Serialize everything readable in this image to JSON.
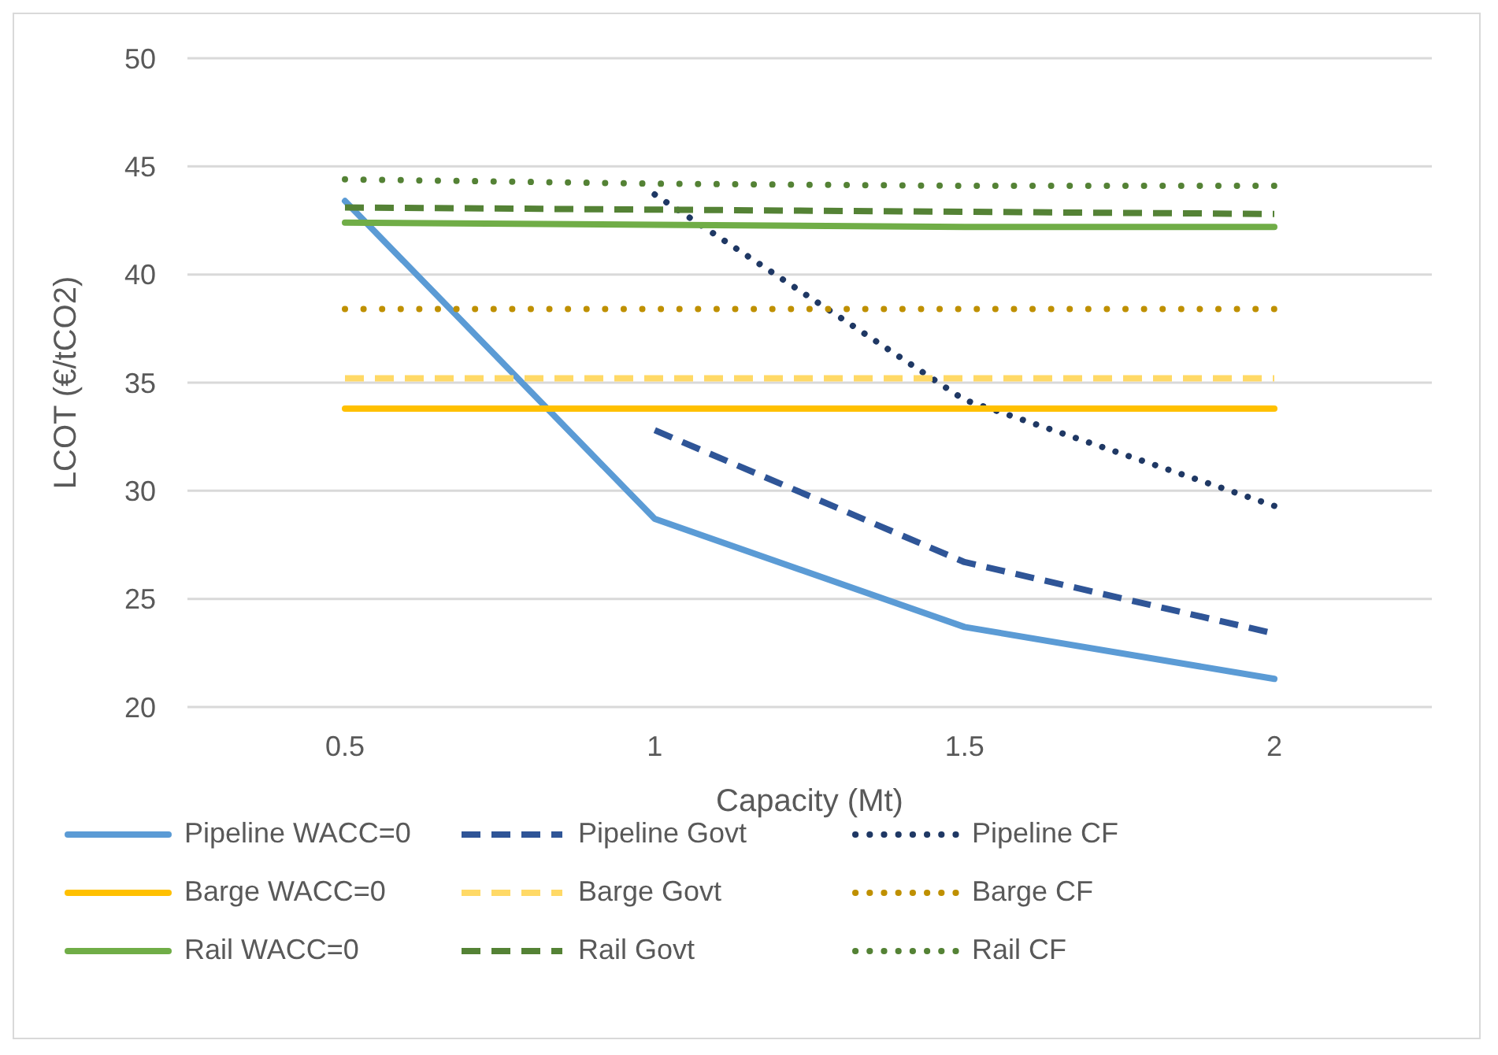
{
  "chart_data": {
    "type": "line",
    "xlabel": "Capacity (Mt)",
    "ylabel": "LCOT (€/tCO2)",
    "categories": [
      "0.5",
      "1",
      "1.5",
      "2"
    ],
    "ylim": [
      20,
      50
    ],
    "yticks": [
      20,
      25,
      30,
      35,
      40,
      45,
      50
    ],
    "grid": "y",
    "legend": "bottom",
    "series": [
      {
        "name": "Pipeline WACC=0",
        "color": "#5b9bd5",
        "line_style": "solid",
        "values": [
          43.4,
          28.7,
          23.7,
          21.3
        ]
      },
      {
        "name": "Pipeline Govt",
        "color": "#2f5597",
        "line_style": "dashed",
        "values": [
          null,
          32.8,
          26.7,
          23.4
        ]
      },
      {
        "name": "Pipeline CF",
        "color": "#1f3864",
        "line_style": "dotted",
        "values": [
          null,
          43.7,
          34.2,
          29.3
        ]
      },
      {
        "name": "Barge WACC=0",
        "color": "#ffc000",
        "line_style": "solid",
        "values": [
          33.8,
          33.8,
          33.8,
          33.8
        ]
      },
      {
        "name": "Barge Govt",
        "color": "#ffd966",
        "line_style": "dashed",
        "values": [
          35.2,
          35.2,
          35.2,
          35.2
        ]
      },
      {
        "name": "Barge CF",
        "color": "#bf9000",
        "line_style": "dotted",
        "values": [
          38.4,
          38.4,
          38.4,
          38.4
        ]
      },
      {
        "name": "Rail WACC=0",
        "color": "#70ad47",
        "line_style": "solid",
        "values": [
          42.4,
          42.3,
          42.2,
          42.2
        ]
      },
      {
        "name": "Rail Govt",
        "color": "#548235",
        "line_style": "dashed",
        "values": [
          43.1,
          43.0,
          42.9,
          42.8
        ]
      },
      {
        "name": "Rail CF",
        "color": "#548235",
        "line_style": "dotted",
        "values": [
          44.4,
          44.2,
          44.1,
          44.1
        ]
      }
    ]
  }
}
